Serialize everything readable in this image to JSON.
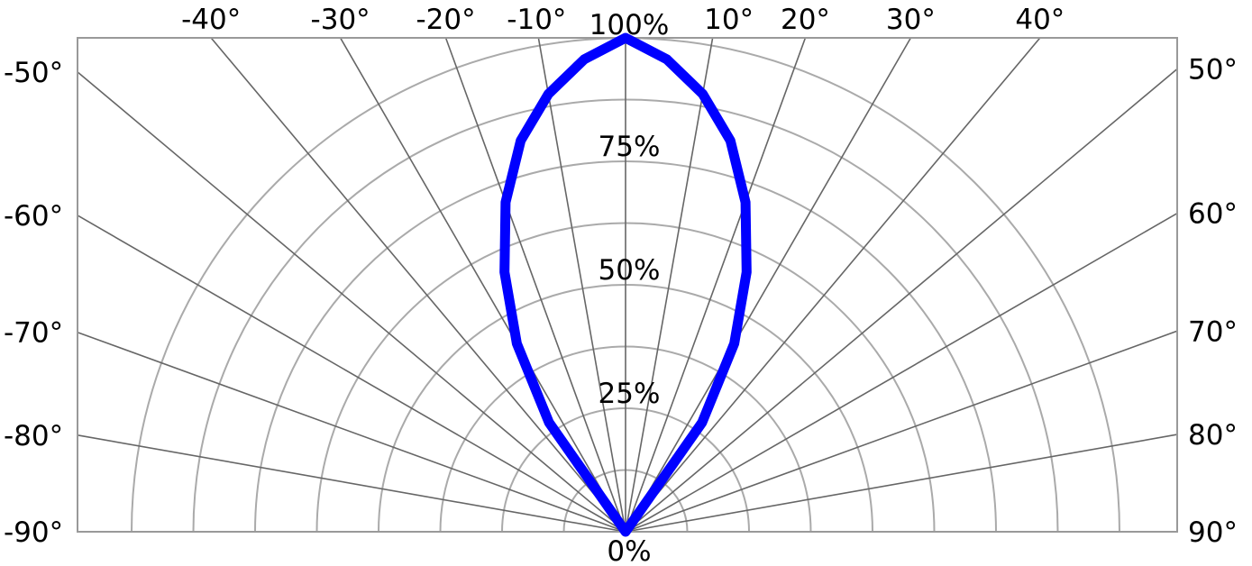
{
  "chart_data": {
    "type": "polar",
    "title": "",
    "angle_unit": "°",
    "radial_unit": "%",
    "angle_range": [
      -90,
      90
    ],
    "radial_range": [
      0,
      100
    ],
    "radial_ticks": [
      {
        "value": 0,
        "label": "0%"
      },
      {
        "value": 25,
        "label": "25%"
      },
      {
        "value": 50,
        "label": "50%"
      },
      {
        "value": 75,
        "label": "75%"
      },
      {
        "value": 100,
        "label": "100%"
      }
    ],
    "angle_ticks": [
      {
        "value": -90,
        "label": "-90°"
      },
      {
        "value": -80,
        "label": "-80°"
      },
      {
        "value": -70,
        "label": "-70°"
      },
      {
        "value": -60,
        "label": "-60°"
      },
      {
        "value": -50,
        "label": "-50°"
      },
      {
        "value": -40,
        "label": "-40°"
      },
      {
        "value": -30,
        "label": "-30°"
      },
      {
        "value": -20,
        "label": "-20°"
      },
      {
        "value": -10,
        "label": "-10°"
      },
      {
        "value": 10,
        "label": "10°"
      },
      {
        "value": 20,
        "label": "20°"
      },
      {
        "value": 30,
        "label": "30°"
      },
      {
        "value": 40,
        "label": "40°"
      },
      {
        "value": 50,
        "label": "50°"
      },
      {
        "value": 60,
        "label": "60°"
      },
      {
        "value": 70,
        "label": "70°"
      },
      {
        "value": 80,
        "label": "80°"
      },
      {
        "value": 90,
        "label": "90°"
      }
    ],
    "grid": true,
    "series": [
      {
        "color": "#0000ff",
        "points": [
          {
            "angle": -40,
            "r": 0
          },
          {
            "angle": -35,
            "r": 27
          },
          {
            "angle": -30,
            "r": 44
          },
          {
            "angle": -25,
            "r": 58
          },
          {
            "angle": -20,
            "r": 71
          },
          {
            "angle": -15,
            "r": 82
          },
          {
            "angle": -10,
            "r": 90
          },
          {
            "angle": -5,
            "r": 96
          },
          {
            "angle": 0,
            "r": 100
          },
          {
            "angle": 5,
            "r": 96
          },
          {
            "angle": 10,
            "r": 90
          },
          {
            "angle": 15,
            "r": 82
          },
          {
            "angle": 20,
            "r": 71
          },
          {
            "angle": 25,
            "r": 58
          },
          {
            "angle": 30,
            "r": 44
          },
          {
            "angle": 35,
            "r": 27
          },
          {
            "angle": 40,
            "r": 0
          }
        ]
      }
    ]
  }
}
